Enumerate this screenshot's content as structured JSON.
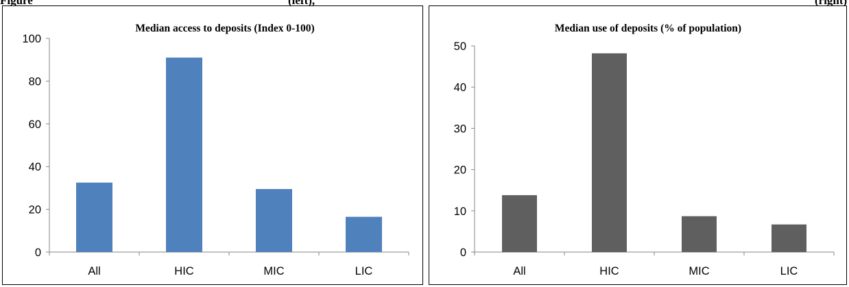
{
  "page": {
    "heading_left": "Figure",
    "heading_middle": "(left),",
    "heading_right": "(right)"
  },
  "chart_data": [
    {
      "type": "bar",
      "title": "Median access to deposits (Index 0-100)",
      "categories": [
        "All",
        "HIC",
        "MIC",
        "LIC"
      ],
      "values": [
        32.5,
        91,
        29.5,
        16.5
      ],
      "ylim": [
        0,
        100
      ],
      "yticks": [
        0,
        20,
        40,
        60,
        80,
        100
      ],
      "bar_color": "#4f81bd",
      "grid": false,
      "legend": "none",
      "xlabel": "",
      "ylabel": ""
    },
    {
      "type": "bar",
      "title": "Median use of deposits (% of population)",
      "categories": [
        "All",
        "HIC",
        "MIC",
        "LIC"
      ],
      "values": [
        13.8,
        48.2,
        8.7,
        6.7
      ],
      "ylim": [
        0,
        50
      ],
      "yticks": [
        0,
        10,
        20,
        30,
        40,
        50
      ],
      "bar_color": "#5f5f5f",
      "grid": false,
      "legend": "none",
      "xlabel": "",
      "ylabel": ""
    }
  ]
}
